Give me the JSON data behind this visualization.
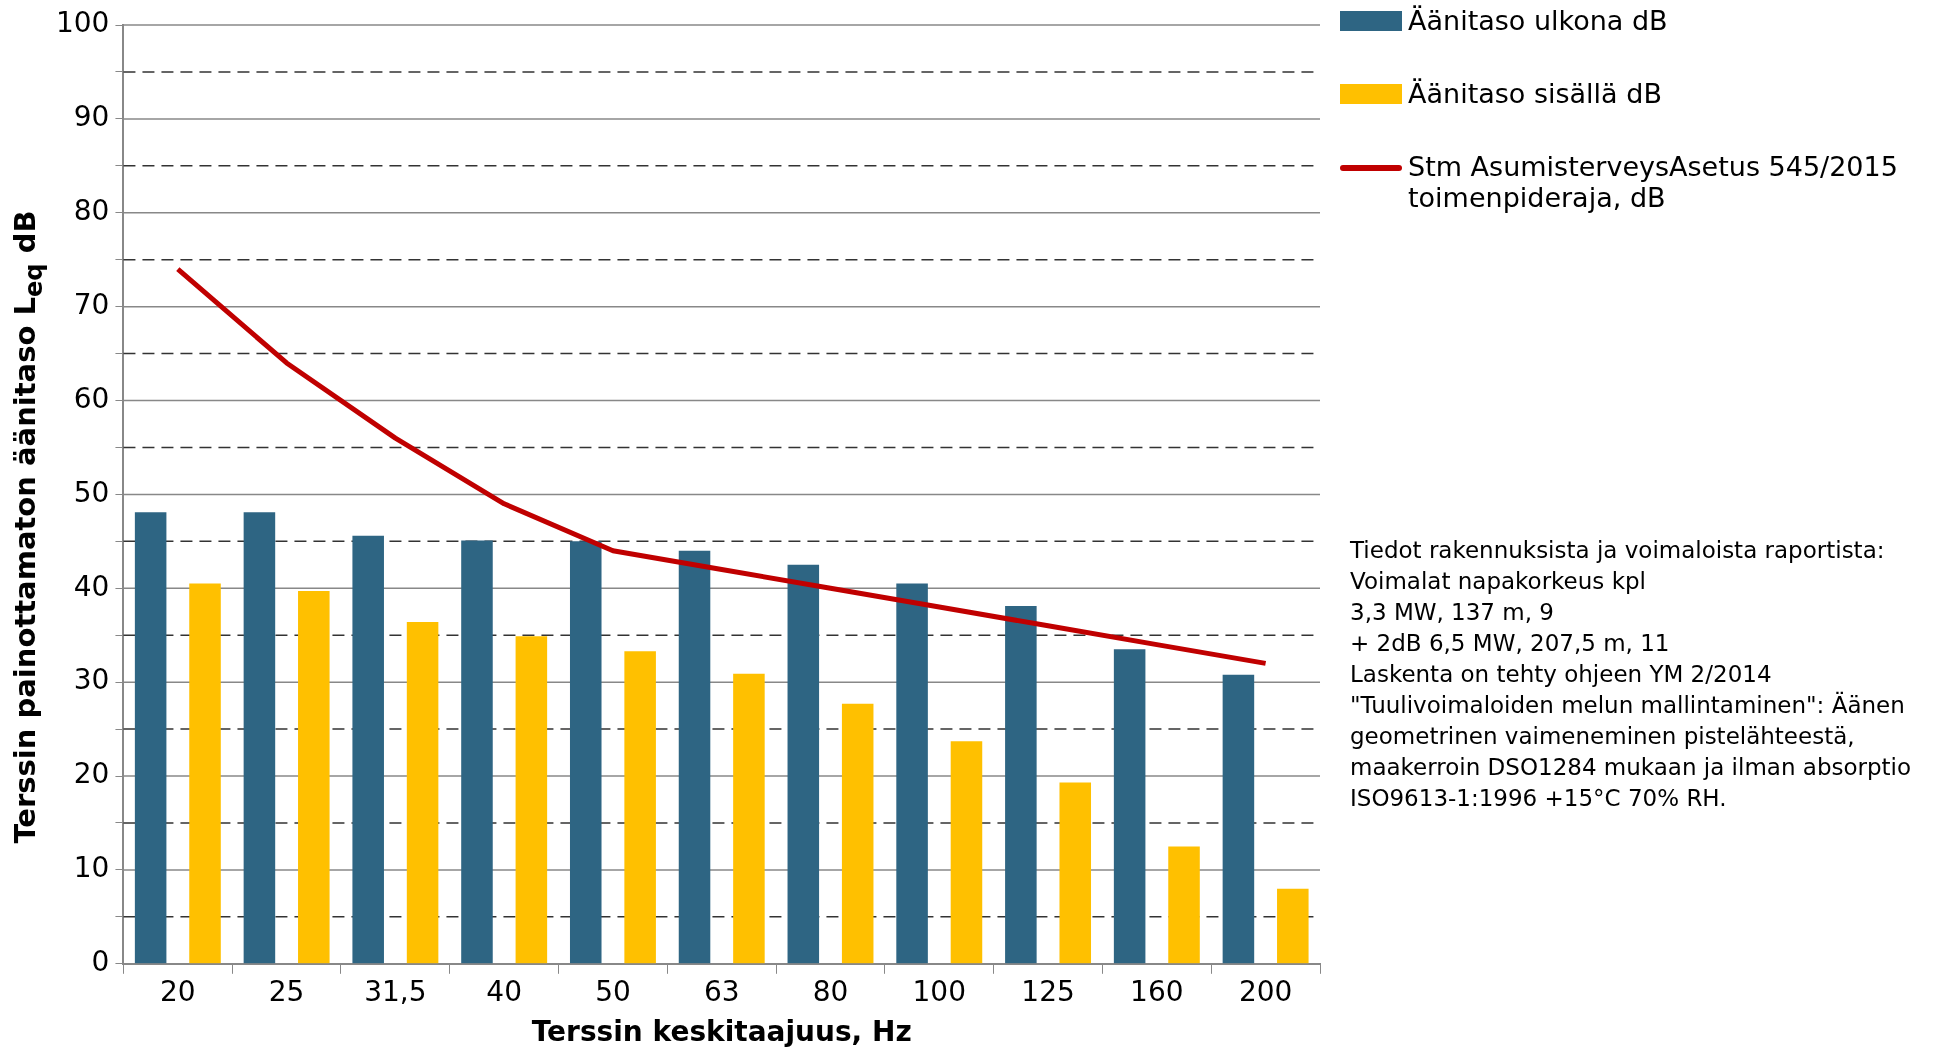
{
  "chart_data": {
    "type": "bar",
    "xlabel": "Terssin keskitaajuus, Hz",
    "ylabel": "Terssin painottamaton äänitaso L$_{eq}$ dB",
    "categories": [
      "20",
      "25",
      "31,5",
      "40",
      "50",
      "63",
      "80",
      "100",
      "125",
      "160",
      "200"
    ],
    "series": [
      {
        "name": "Äänitaso ulkona dB",
        "color": "#2e6583",
        "values": [
          48.1,
          48.1,
          45.6,
          45.1,
          45.0,
          44.0,
          42.5,
          40.5,
          38.1,
          33.5,
          30.8
        ]
      },
      {
        "name": "Äänitaso sisällä dB",
        "color": "#ffc000",
        "values": [
          40.5,
          39.7,
          36.4,
          34.9,
          33.3,
          30.9,
          27.7,
          23.7,
          19.3,
          12.5,
          8.0
        ]
      },
      {
        "name": "Stm AsumisterveysAsetus 545/2015 toimenpideraja, dB",
        "color": "#c00000",
        "type": "line",
        "values": [
          74,
          64,
          56,
          49,
          44,
          42,
          40,
          38,
          36,
          34,
          32
        ]
      }
    ],
    "ylim": [
      0,
      100
    ],
    "yticks": [
      0,
      {
        "value": 5,
        "label": null
      },
      10,
      {
        "value": 15,
        "label": null
      },
      20,
      {
        "value": 25,
        "label": null
      },
      30,
      {
        "value": 35,
        "label": null
      },
      40,
      {
        "value": 45,
        "label": null
      },
      50,
      {
        "value": 55,
        "label": null
      },
      60,
      {
        "value": 65,
        "label": null
      },
      70,
      {
        "value": 75,
        "label": null
      },
      80,
      {
        "value": 85,
        "label": null
      },
      90,
      {
        "value": 95,
        "label": null
      },
      100
    ],
    "grid": "y",
    "legend": "right",
    "marker": "none",
    "line_style": "solid",
    "annotations": [
      "Tiedot rakennuksista ja voimaloista raportista:",
      "Voimalat napakorkeus kpl",
      "3,3 MW, 137 m, 9",
      "+ 2dB 6,5 MW, 207,5 m, 11",
      "Laskenta on tehty ohjeen YM 2/2014 \"Tuulivoimaloiden melun mallintaminen\": Äänen geometrinen vaimeneminen pistelähteestä, maakerroin DSO1284 mukaan ja ilman absorptio ISO9613-1:1996 +15°C 70% RH."
    ]
  }
}
